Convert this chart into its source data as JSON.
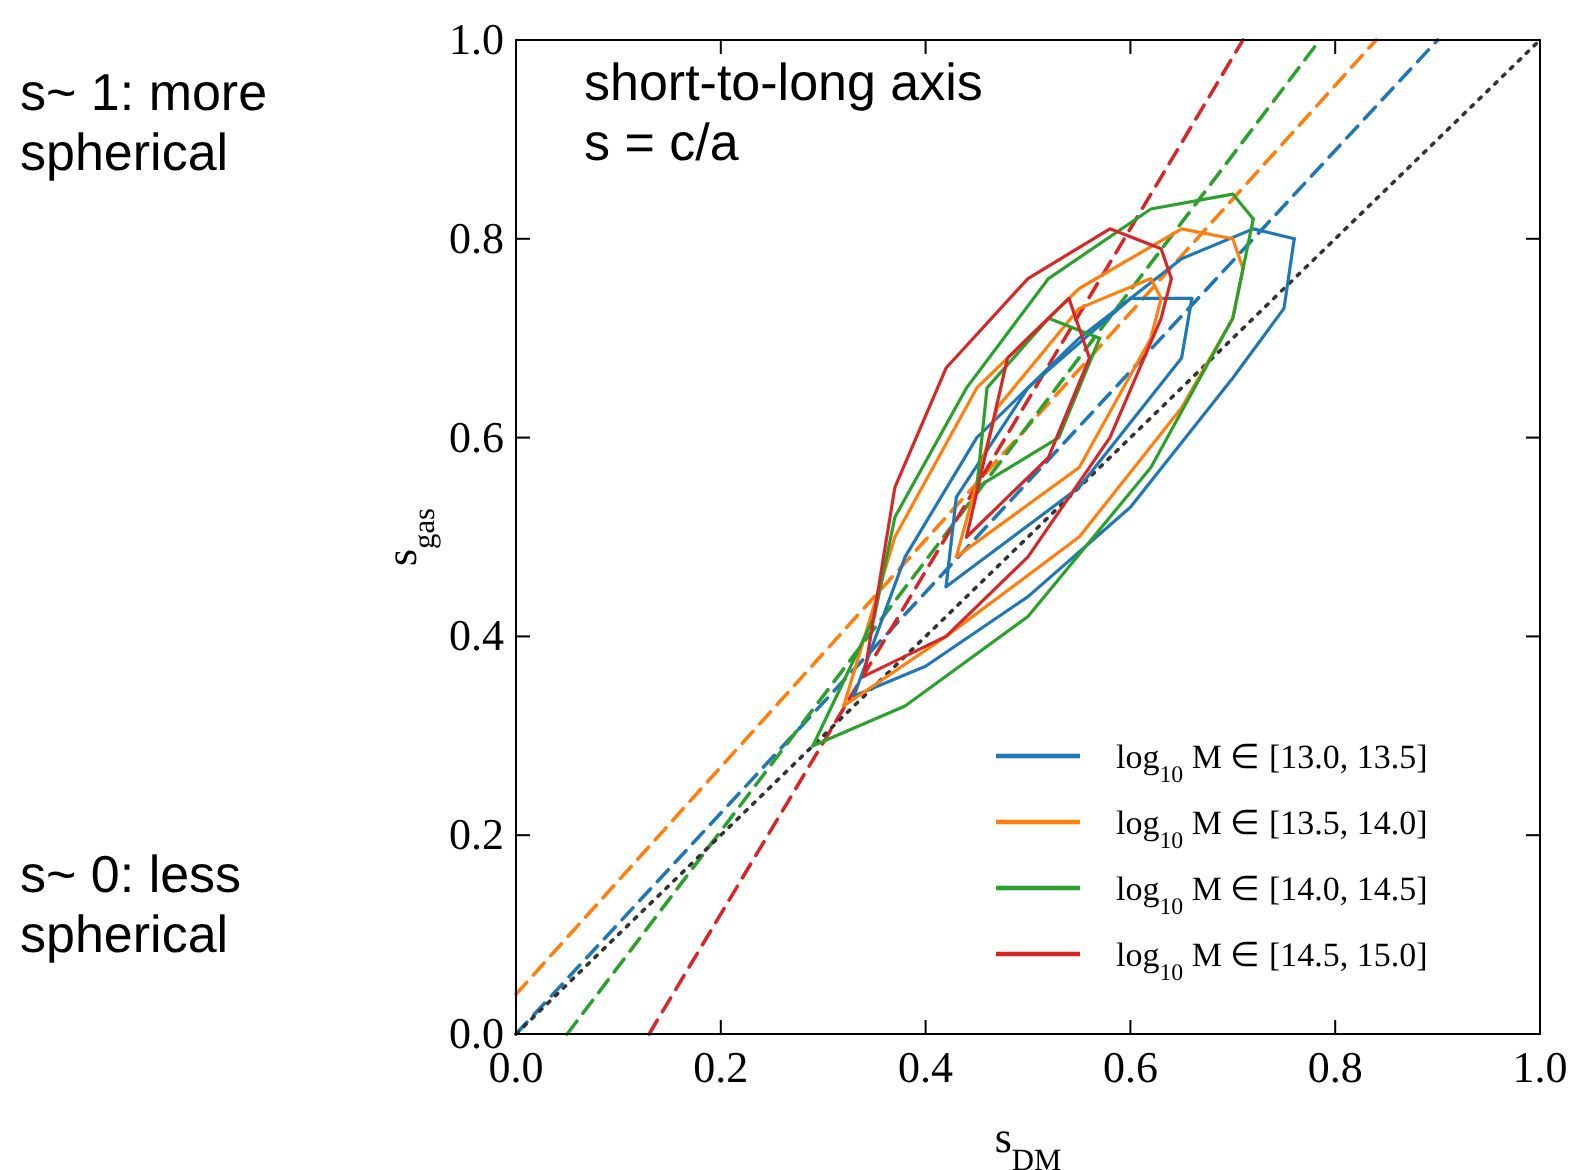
{
  "chart_data": {
    "type": "line",
    "xlabel": "s$_{DM}$",
    "ylabel": "s$_{gas}$",
    "xlim": [
      0,
      1
    ],
    "ylim": [
      0,
      1
    ],
    "xticks": [
      {
        "value": 0,
        "label": "0.0"
      },
      {
        "value": 0.2,
        "label": "0.2"
      },
      {
        "value": 0.4,
        "label": "0.4"
      },
      {
        "value": 0.6,
        "label": "0.6"
      },
      {
        "value": 0.8,
        "label": "0.8"
      },
      {
        "value": 1,
        "label": "1.0"
      }
    ],
    "yticks": [
      {
        "value": 0,
        "label": "0.0"
      },
      {
        "value": 0.2,
        "label": "0.2"
      },
      {
        "value": 0.4,
        "label": "0.4"
      },
      {
        "value": 0.6,
        "label": "0.6"
      },
      {
        "value": 0.8,
        "label": "0.8"
      },
      {
        "value": 1,
        "label": "1.0"
      }
    ],
    "grid": false,
    "legend": "bottom right",
    "marker": "none",
    "line_style": "solid",
    "annotations": [
      "short-to-long axis\ns = c/a",
      "s~ 1: more\nspherical",
      "s~ 0: less\nspherical"
    ],
    "series": [
      {
        "color": "#1f77b4",
        "line_style": "dashed",
        "x": [
          0,
          0.9
        ],
        "values": [
          0,
          1
        ]
      },
      {
        "color": "#ff7f0e",
        "line_style": "dashed",
        "x": [
          0,
          0.84
        ],
        "values": [
          0.04,
          1
        ]
      },
      {
        "color": "#2ca02c",
        "line_style": "dashed",
        "x": [
          0.05,
          0.785
        ],
        "values": [
          0,
          1
        ]
      },
      {
        "color": "#d62728",
        "line_style": "dashed",
        "x": [
          0.13,
          0.71
        ],
        "values": [
          0,
          1
        ]
      },
      {
        "color": "#333333",
        "line_style": "dotted",
        "x": [
          0,
          1
        ],
        "values": [
          0,
          1
        ]
      },
      {
        "name": "log$_{10}$ M ∈ [13.0, 13.5]",
        "color": "#1f77b4",
        "x": [
          0.33,
          0.4,
          0.5,
          0.6,
          0.7,
          0.75,
          0.76
        ],
        "values": [
          0.34,
          0.37,
          0.44,
          0.53,
          0.66,
          0.73,
          0.8
        ]
      },
      {
        "color": "#1f77b4",
        "x": [
          0.33,
          0.38,
          0.45,
          0.55,
          0.65,
          0.72,
          0.76
        ],
        "values": [
          0.34,
          0.48,
          0.6,
          0.7,
          0.78,
          0.81,
          0.8
        ]
      },
      {
        "color": "#1f77b4",
        "x": [
          0.42,
          0.55,
          0.65,
          0.66
        ],
        "values": [
          0.45,
          0.55,
          0.68,
          0.74
        ]
      },
      {
        "color": "#1f77b4",
        "x": [
          0.42,
          0.43,
          0.5,
          0.6,
          0.66
        ],
        "values": [
          0.45,
          0.54,
          0.65,
          0.74,
          0.74
        ]
      },
      {
        "name": "log$_{10}$ M ∈ [13.5, 14.0]",
        "color": "#ff7f0e",
        "x": [
          0.32,
          0.42,
          0.55,
          0.65,
          0.7,
          0.71
        ],
        "values": [
          0.33,
          0.4,
          0.5,
          0.63,
          0.72,
          0.77
        ]
      },
      {
        "color": "#ff7f0e",
        "x": [
          0.32,
          0.37,
          0.45,
          0.55,
          0.65,
          0.7,
          0.71
        ],
        "values": [
          0.33,
          0.5,
          0.65,
          0.75,
          0.81,
          0.8,
          0.77
        ]
      },
      {
        "color": "#ff7f0e",
        "x": [
          0.43,
          0.55,
          0.62,
          0.63
        ],
        "values": [
          0.48,
          0.57,
          0.7,
          0.74
        ]
      },
      {
        "color": "#ff7f0e",
        "x": [
          0.43,
          0.47,
          0.55,
          0.62,
          0.63
        ],
        "values": [
          0.48,
          0.63,
          0.73,
          0.76,
          0.74
        ]
      },
      {
        "name": "log$_{10}$ M ∈ [14.0, 14.5]",
        "color": "#2ca02c",
        "x": [
          0.29,
          0.38,
          0.5,
          0.62,
          0.7,
          0.72
        ],
        "values": [
          0.29,
          0.33,
          0.42,
          0.57,
          0.72,
          0.82
        ]
      },
      {
        "color": "#2ca02c",
        "x": [
          0.29,
          0.35,
          0.37,
          0.44,
          0.52,
          0.62,
          0.7,
          0.72
        ],
        "values": [
          0.29,
          0.42,
          0.52,
          0.65,
          0.76,
          0.83,
          0.845,
          0.82
        ]
      },
      {
        "color": "#2ca02c",
        "x": [
          0.45,
          0.53,
          0.57
        ],
        "values": [
          0.55,
          0.6,
          0.7
        ]
      },
      {
        "color": "#2ca02c",
        "x": [
          0.45,
          0.46,
          0.52,
          0.57
        ],
        "values": [
          0.55,
          0.65,
          0.72,
          0.7
        ]
      },
      {
        "name": "log$_{10}$ M ∈ [14.5, 15.0]",
        "color": "#d62728",
        "x": [
          0.34,
          0.42,
          0.5,
          0.58,
          0.63,
          0.64
        ],
        "values": [
          0.36,
          0.4,
          0.48,
          0.6,
          0.72,
          0.76
        ]
      },
      {
        "color": "#d62728",
        "x": [
          0.34,
          0.37,
          0.42,
          0.5,
          0.58,
          0.63,
          0.64
        ],
        "values": [
          0.36,
          0.55,
          0.67,
          0.76,
          0.81,
          0.79,
          0.76
        ]
      },
      {
        "color": "#d62728",
        "x": [
          0.44,
          0.52,
          0.56
        ],
        "values": [
          0.5,
          0.58,
          0.68
        ]
      },
      {
        "color": "#d62728",
        "x": [
          0.44,
          0.48,
          0.54,
          0.56
        ],
        "values": [
          0.5,
          0.68,
          0.74,
          0.68
        ]
      }
    ]
  }
}
